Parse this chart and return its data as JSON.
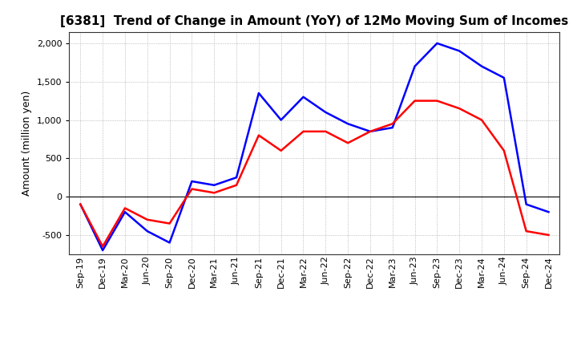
{
  "title": "[6381]  Trend of Change in Amount (YoY) of 12Mo Moving Sum of Incomes",
  "ylabel": "Amount (million yen)",
  "x_labels": [
    "Sep-19",
    "Dec-19",
    "Mar-20",
    "Jun-20",
    "Sep-20",
    "Dec-20",
    "Mar-21",
    "Jun-21",
    "Sep-21",
    "Dec-21",
    "Mar-22",
    "Jun-22",
    "Sep-22",
    "Dec-22",
    "Mar-23",
    "Jun-23",
    "Sep-23",
    "Dec-23",
    "Mar-24",
    "Jun-24",
    "Sep-24",
    "Dec-24"
  ],
  "ordinary_income": [
    -100,
    -700,
    -200,
    -450,
    -600,
    200,
    150,
    250,
    1350,
    1000,
    1300,
    1100,
    950,
    850,
    900,
    1700,
    2000,
    1900,
    1700,
    1550,
    -100,
    -200
  ],
  "net_income": [
    -100,
    -650,
    -150,
    -300,
    -350,
    100,
    50,
    150,
    800,
    600,
    850,
    850,
    700,
    850,
    950,
    1250,
    1250,
    1150,
    1000,
    600,
    -450,
    -500
  ],
  "ordinary_color": "#0000ff",
  "net_color": "#ff0000",
  "ylim": [
    -750,
    2150
  ],
  "yticks": [
    -500,
    0,
    500,
    1000,
    1500,
    2000
  ],
  "background_color": "#ffffff",
  "grid_color": "#aaaaaa",
  "title_fontsize": 11,
  "axis_label_fontsize": 9,
  "tick_fontsize": 8,
  "legend_fontsize": 9,
  "linewidth": 1.8
}
